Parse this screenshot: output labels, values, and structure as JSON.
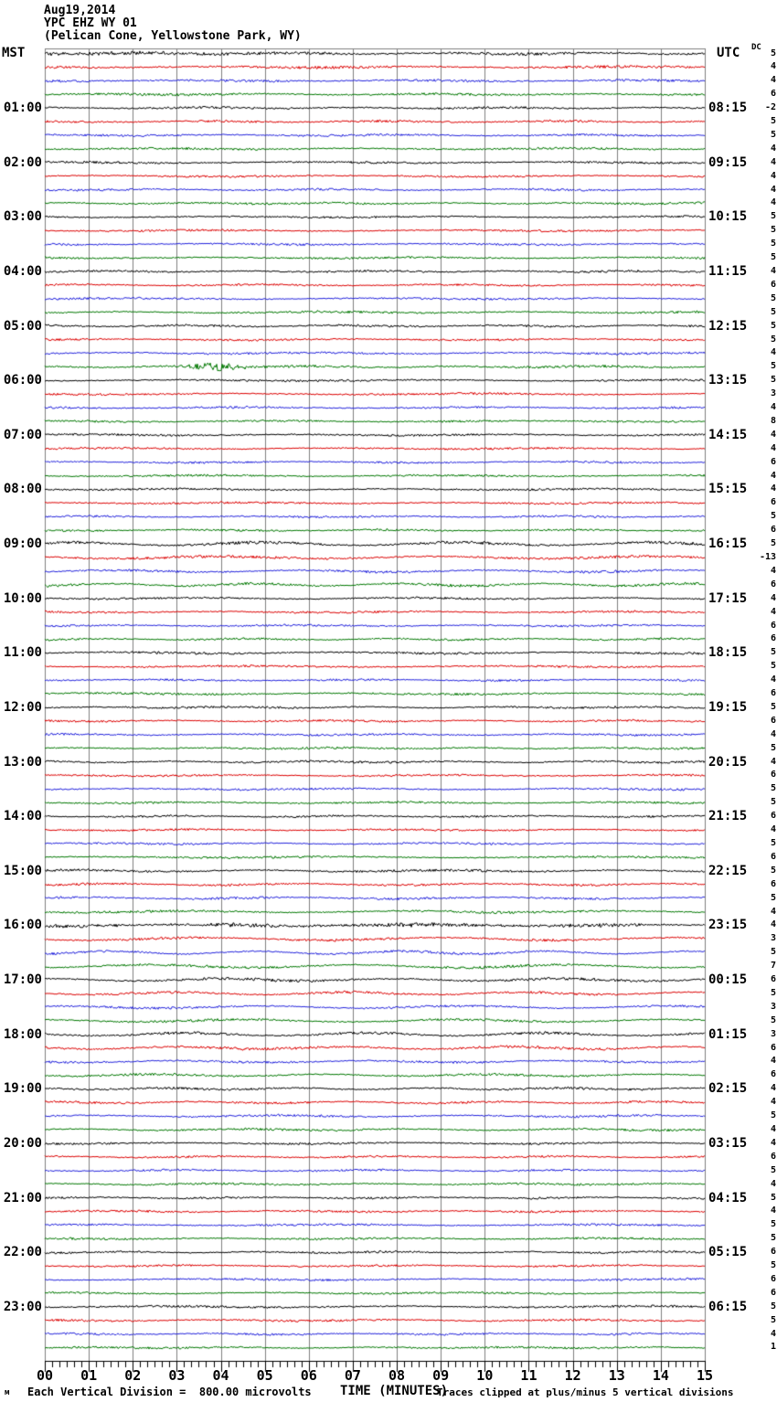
{
  "header": {
    "date": "Aug19,2014",
    "station": "YPC EHZ WY 01",
    "location": "(Pelican Cone, Yellowstone Park, WY)",
    "left_tz": "MST",
    "right_tz": "UTC",
    "dc_label": "DC"
  },
  "footer": {
    "watermark": "м",
    "scale_note": "Each Vertical Division =  800.00 microvolts",
    "xlabel": "TIME (MINUTES)",
    "clip_note": "Traces clipped at plus/minus 5 vertical divisions"
  },
  "chart_data": {
    "type": "line",
    "subtype": "helicorder-seismogram",
    "title": "YPC EHZ WY 01 (Pelican Cone, Yellowstone Park, WY) Aug19,2014",
    "xlabel": "TIME (MINUTES)",
    "x_range_minutes": [
      0,
      15
    ],
    "rows": 96,
    "minutes_per_row": 15,
    "rows_per_hour": 4,
    "grid_color": "#808080",
    "trace_color_cycle": [
      "#000000",
      "#dd0000",
      "#2222dd",
      "#007700"
    ],
    "x_ticks": [
      "00",
      "01",
      "02",
      "03",
      "04",
      "05",
      "06",
      "07",
      "08",
      "09",
      "10",
      "11",
      "12",
      "13",
      "14",
      "15"
    ],
    "x_minor_per_major": 6,
    "mst_hour_labels": [
      "01:00",
      "02:00",
      "03:00",
      "04:00",
      "05:00",
      "06:00",
      "07:00",
      "08:00",
      "09:00",
      "10:00",
      "11:00",
      "12:00",
      "13:00",
      "14:00",
      "15:00",
      "16:00",
      "17:00",
      "18:00",
      "19:00",
      "20:00",
      "21:00",
      "22:00",
      "23:00"
    ],
    "utc_hour_labels": [
      "08:15",
      "09:15",
      "10:15",
      "11:15",
      "12:15",
      "13:15",
      "14:15",
      "15:15",
      "16:15",
      "17:15",
      "18:15",
      "19:15",
      "20:15",
      "21:15",
      "22:15",
      "23:15",
      "00:15",
      "01:15",
      "02:15",
      "03:15",
      "04:15",
      "05:15",
      "06:15"
    ],
    "dc_values": [
      5,
      4,
      4,
      6,
      -2,
      5,
      5,
      4,
      4,
      4,
      4,
      4,
      5,
      5,
      5,
      5,
      4,
      6,
      5,
      5,
      5,
      5,
      4,
      5,
      5,
      3,
      4,
      8,
      4,
      4,
      6,
      4,
      4,
      6,
      5,
      6,
      5,
      -13,
      4,
      6,
      4,
      4,
      6,
      6,
      5,
      5,
      4,
      6,
      5,
      6,
      4,
      5,
      4,
      6,
      5,
      5,
      6,
      4,
      5,
      6,
      5,
      6,
      5,
      4,
      4,
      3,
      5,
      7,
      6,
      5,
      3,
      5,
      3,
      6,
      4,
      6,
      4,
      4,
      5,
      4,
      4,
      6,
      5,
      4,
      5,
      4,
      5,
      5,
      6,
      5,
      6,
      6,
      5,
      5,
      4,
      1
    ],
    "noise_amp": [
      1.7,
      1.5,
      1.4,
      1.4,
      1.3,
      1.3,
      1.3,
      1.3,
      1.3,
      1.2,
      1.2,
      1.3,
      1.2,
      1.2,
      1.2,
      1.2,
      1.2,
      1.2,
      1.2,
      1.3,
      1.3,
      1.2,
      1.3,
      1.5,
      1.2,
      1.2,
      1.2,
      1.2,
      1.2,
      1.2,
      1.2,
      1.2,
      1.2,
      1.2,
      1.2,
      1.2,
      1.7,
      1.5,
      1.4,
      1.5,
      1.2,
      1.2,
      1.2,
      1.2,
      1.4,
      1.2,
      1.2,
      1.3,
      1.2,
      1.2,
      1.2,
      1.2,
      1.3,
      1.2,
      1.2,
      1.2,
      1.2,
      1.2,
      1.2,
      1.2,
      1.4,
      1.3,
      1.3,
      1.4,
      1.9,
      1.5,
      1.4,
      1.5,
      1.6,
      1.4,
      1.3,
      1.4,
      1.5,
      1.6,
      1.3,
      1.3,
      1.3,
      1.3,
      1.3,
      1.3,
      1.2,
      1.2,
      1.2,
      1.2,
      1.2,
      1.2,
      1.2,
      1.2,
      1.2,
      1.2,
      1.2,
      1.2,
      1.3,
      1.3,
      1.2,
      1.2
    ],
    "lowfreq_amp": [
      0.6,
      0.5,
      0.5,
      0.5,
      0.5,
      0.5,
      0.5,
      0.5,
      0.5,
      0.5,
      0.5,
      0.5,
      0.5,
      0.5,
      0.5,
      0.5,
      0.5,
      0.5,
      0.5,
      0.6,
      0.6,
      0.5,
      0.6,
      0.7,
      0.5,
      0.5,
      0.5,
      0.5,
      0.5,
      0.5,
      0.5,
      0.5,
      0.5,
      0.5,
      0.5,
      0.5,
      1.6,
      1.2,
      1.0,
      1.2,
      0.6,
      0.5,
      0.5,
      0.6,
      0.7,
      0.5,
      0.5,
      0.6,
      0.5,
      0.5,
      0.5,
      0.5,
      0.6,
      0.5,
      0.5,
      0.5,
      0.5,
      0.5,
      0.5,
      0.5,
      0.8,
      0.8,
      0.8,
      0.8,
      0.7,
      1.4,
      1.5,
      1.6,
      1.2,
      1.3,
      1.2,
      1.3,
      1.5,
      1.3,
      0.9,
      1.0,
      0.8,
      0.8,
      0.7,
      0.7,
      0.6,
      0.6,
      0.6,
      0.6,
      0.5,
      0.5,
      0.5,
      0.5,
      0.6,
      0.6,
      0.6,
      0.6,
      0.6,
      0.6,
      0.5,
      0.5
    ],
    "events": [
      {
        "row": 23,
        "minute": 3.9,
        "amp": 4.5,
        "sigma": 0.4
      },
      {
        "row": 0,
        "minute": 2.0,
        "amp": 1.5,
        "sigma": 1.5
      },
      {
        "row": 64,
        "minute": 7.5,
        "amp": 0.8,
        "sigma": 6.0
      }
    ]
  }
}
